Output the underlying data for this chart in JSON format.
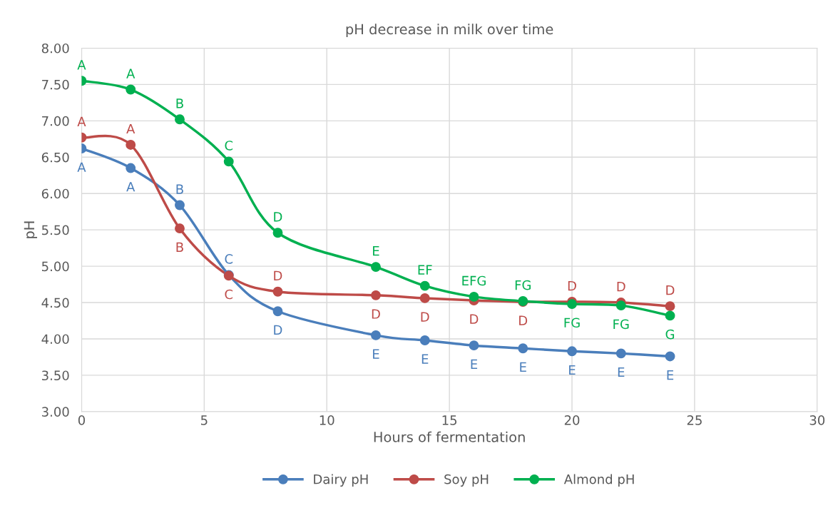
{
  "chart_data": {
    "type": "line",
    "title": "pH decrease in milk over time",
    "xlabel": "Hours of fermentation",
    "ylabel": "pH",
    "x": [
      0,
      2,
      4,
      6,
      8,
      12,
      14,
      16,
      18,
      20,
      22,
      24
    ],
    "series": [
      {
        "name": "Dairy pH",
        "color": "#4a7ebb",
        "values": [
          6.62,
          6.35,
          5.84,
          4.88,
          4.38,
          4.05,
          3.98,
          3.91,
          3.87,
          3.83,
          3.8,
          3.76
        ],
        "value_labels": [
          "A",
          "A",
          "B",
          "C",
          "D",
          "E",
          "E",
          "E",
          "E",
          "E",
          "E",
          "E"
        ]
      },
      {
        "name": "Soy pH",
        "color": "#be4b48",
        "values": [
          6.77,
          6.67,
          5.52,
          4.87,
          4.65,
          4.6,
          4.56,
          4.53,
          4.51,
          4.51,
          4.5,
          4.45
        ],
        "value_labels": [
          "A",
          "A",
          "B",
          "C",
          "D",
          "D",
          "D",
          "D",
          "D",
          "D",
          "D",
          "D"
        ]
      },
      {
        "name": "Almond pH",
        "color": "#00b050",
        "values": [
          7.55,
          7.43,
          7.02,
          6.44,
          5.46,
          4.99,
          4.73,
          4.58,
          4.52,
          4.48,
          4.46,
          4.32
        ],
        "value_labels": [
          "A",
          "A",
          "B",
          "C",
          "D",
          "E",
          "EF",
          "EFG",
          "FG",
          "FG",
          "FG",
          "G"
        ]
      }
    ],
    "xlim": [
      0,
      30
    ],
    "xticks": [
      0,
      5,
      10,
      15,
      20,
      25,
      30
    ],
    "ylim": [
      3,
      8
    ],
    "yticks": [
      {
        "value": 3,
        "label": "3.00"
      },
      {
        "value": 3.5,
        "label": "3.50"
      },
      {
        "value": 4,
        "label": "4.00"
      },
      {
        "value": 4.5,
        "label": "4.50"
      },
      {
        "value": 5,
        "label": "5.00"
      },
      {
        "value": 5.5,
        "label": "5.50"
      },
      {
        "value": 6,
        "label": "6.00"
      },
      {
        "value": 6.5,
        "label": "6.50"
      },
      {
        "value": 7,
        "label": "7.00"
      },
      {
        "value": 7.5,
        "label": "7.50"
      },
      {
        "value": 8,
        "label": "8.00"
      }
    ],
    "grid": true,
    "legend": "bottom",
    "marker": "circle",
    "line_style": "solid"
  }
}
